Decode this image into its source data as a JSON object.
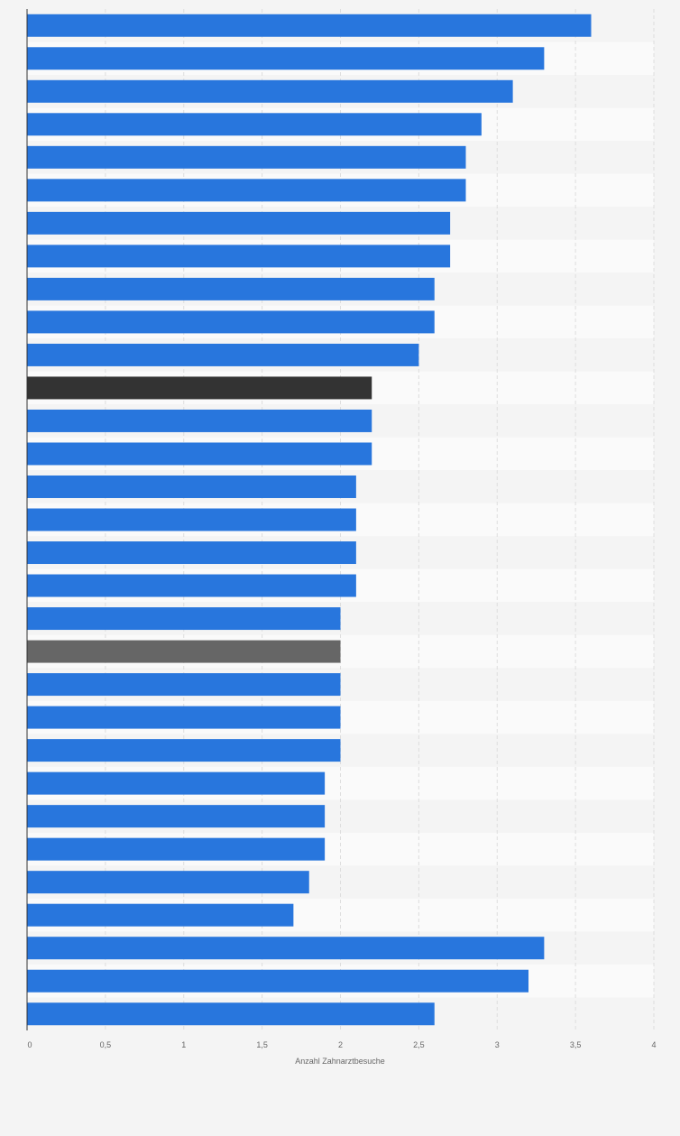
{
  "chart_data": {
    "type": "bar",
    "orientation": "horizontal",
    "xlabel": "Anzahl Zahnarztbesuche",
    "xlim": [
      0,
      4
    ],
    "xticks": [
      "0",
      "0,5",
      "1",
      "1,5",
      "2",
      "2,5",
      "3",
      "3,5",
      "4"
    ],
    "values": [
      3.6,
      3.3,
      3.1,
      2.9,
      2.8,
      2.8,
      2.7,
      2.7,
      2.6,
      2.6,
      2.5,
      2.2,
      2.2,
      2.2,
      2.1,
      2.1,
      2.1,
      2.1,
      2.0,
      2.0,
      2.0,
      2.0,
      2.0,
      1.9,
      1.9,
      1.9,
      1.8,
      1.7,
      3.3,
      3.2,
      2.6
    ],
    "highlight": {
      "11": "dark",
      "19": "gray"
    },
    "grid": true
  },
  "colors": {
    "bar": "#2876dd",
    "bar_dark": "#333333",
    "bar_gray": "#666666",
    "row_a": "#f4f4f4",
    "row_b": "#fafafa",
    "grid": "#dddddd",
    "axis": "#333333"
  }
}
